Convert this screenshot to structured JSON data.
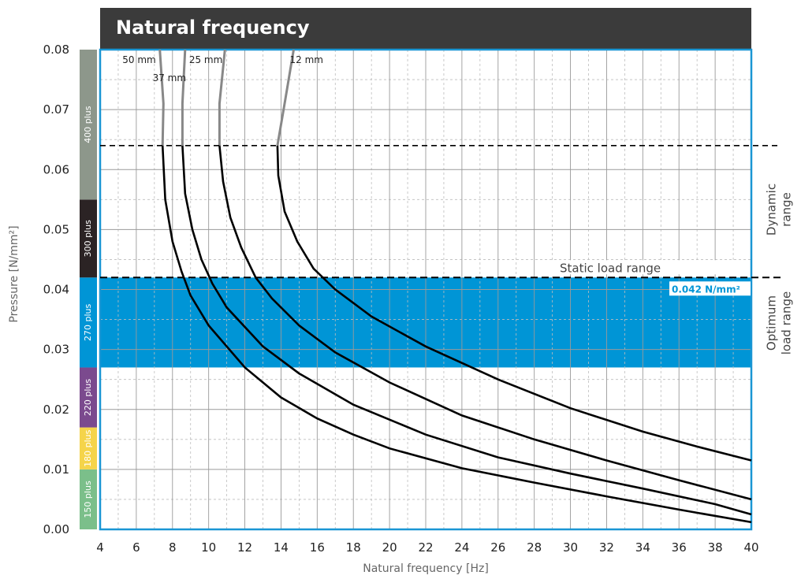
{
  "title": "Natural frequency",
  "colors": {
    "title_bg": "#3b3b3b",
    "optimum_band": "#0095d6",
    "plot_border": "#1a96d4",
    "curve_main": "#000000",
    "curve_ext": "#888888"
  },
  "chart_data": {
    "type": "line",
    "xlabel": "Natural frequency [Hz]",
    "ylabel": "Pressure [N/mm²]",
    "xlim": [
      4,
      40
    ],
    "ylim": [
      0,
      0.08
    ],
    "x_ticks": [
      "4",
      "6",
      "8",
      "10",
      "12",
      "14",
      "16",
      "18",
      "20",
      "22",
      "24",
      "26",
      "28",
      "30",
      "32",
      "34",
      "36",
      "38",
      "40"
    ],
    "y_ticks": [
      "0.00",
      "0.01",
      "0.02",
      "0.03",
      "0.04",
      "0.05",
      "0.06",
      "0.07",
      "0.08"
    ],
    "grid": true,
    "series": [
      {
        "name": "50 mm",
        "label_y": 0.0783,
        "points": [
          [
            7.3,
            0.08
          ],
          [
            7.5,
            0.071
          ],
          [
            7.45,
            0.064
          ],
          [
            7.6,
            0.055
          ],
          [
            8.0,
            0.048
          ],
          [
            8.5,
            0.043
          ],
          [
            9.0,
            0.039
          ],
          [
            10.0,
            0.034
          ],
          [
            12.0,
            0.027
          ],
          [
            14.0,
            0.022
          ],
          [
            16.0,
            0.0185
          ],
          [
            18.0,
            0.0158
          ],
          [
            20.0,
            0.0135
          ],
          [
            24.0,
            0.0102
          ],
          [
            28.0,
            0.0078
          ],
          [
            32.0,
            0.0055
          ],
          [
            36.0,
            0.0033
          ],
          [
            40.0,
            0.0012
          ]
        ]
      },
      {
        "name": "37 mm",
        "label_y": 0.0753,
        "points": [
          [
            8.7,
            0.08
          ],
          [
            8.55,
            0.071
          ],
          [
            8.55,
            0.064
          ],
          [
            8.7,
            0.056
          ],
          [
            9.1,
            0.05
          ],
          [
            9.6,
            0.045
          ],
          [
            10.2,
            0.041
          ],
          [
            11.0,
            0.037
          ],
          [
            13.0,
            0.0305
          ],
          [
            15.0,
            0.026
          ],
          [
            18.0,
            0.0208
          ],
          [
            22.0,
            0.0158
          ],
          [
            26.0,
            0.012
          ],
          [
            30.0,
            0.0093
          ],
          [
            34.0,
            0.0068
          ],
          [
            38.0,
            0.0042
          ],
          [
            40.0,
            0.0025
          ]
        ]
      },
      {
        "name": "25 mm",
        "label_y": 0.0783,
        "points": [
          [
            10.9,
            0.08
          ],
          [
            10.6,
            0.071
          ],
          [
            10.6,
            0.064
          ],
          [
            10.8,
            0.058
          ],
          [
            11.2,
            0.052
          ],
          [
            11.8,
            0.047
          ],
          [
            12.6,
            0.042
          ],
          [
            13.5,
            0.0385
          ],
          [
            15.0,
            0.034
          ],
          [
            17.0,
            0.0295
          ],
          [
            20.0,
            0.0245
          ],
          [
            24.0,
            0.019
          ],
          [
            28.0,
            0.015
          ],
          [
            32.0,
            0.0115
          ],
          [
            36.0,
            0.0082
          ],
          [
            40.0,
            0.005
          ]
        ]
      },
      {
        "name": "12 mm",
        "label_y": 0.0783,
        "points": [
          [
            14.7,
            0.08
          ],
          [
            14.2,
            0.071
          ],
          [
            13.8,
            0.064
          ],
          [
            13.85,
            0.059
          ],
          [
            14.2,
            0.053
          ],
          [
            14.9,
            0.048
          ],
          [
            15.8,
            0.0435
          ],
          [
            17.0,
            0.04
          ],
          [
            19.0,
            0.0355
          ],
          [
            22.0,
            0.0305
          ],
          [
            26.0,
            0.025
          ],
          [
            30.0,
            0.0202
          ],
          [
            34.0,
            0.0163
          ],
          [
            37.0,
            0.0138
          ],
          [
            40.0,
            0.0115
          ]
        ]
      }
    ],
    "regions": {
      "optimum_band": [
        0.027,
        0.042
      ],
      "static_line": 0.042,
      "dynamic_line": 0.064
    },
    "annotations": {
      "static_label": "Static load range",
      "value_label": "0.042 N/mm²",
      "dynamic_label": [
        "Dynamic",
        "range"
      ],
      "optimum_label": [
        "Optimum",
        "load range"
      ]
    },
    "material_bands": [
      {
        "name": "150 plus",
        "from": 0.0,
        "to": 0.01,
        "color": "#7bbf8a"
      },
      {
        "name": "180 plus",
        "from": 0.01,
        "to": 0.017,
        "color": "#f5d44a"
      },
      {
        "name": "220 plus",
        "from": 0.017,
        "to": 0.027,
        "color": "#7b4a8e"
      },
      {
        "name": "270 plus",
        "from": 0.027,
        "to": 0.042,
        "color": "#0095d6"
      },
      {
        "name": "300 plus",
        "from": 0.042,
        "to": 0.055,
        "color": "#2b2324"
      },
      {
        "name": "400 plus",
        "from": 0.055,
        "to": 0.08,
        "color": "#8d978b"
      }
    ]
  }
}
